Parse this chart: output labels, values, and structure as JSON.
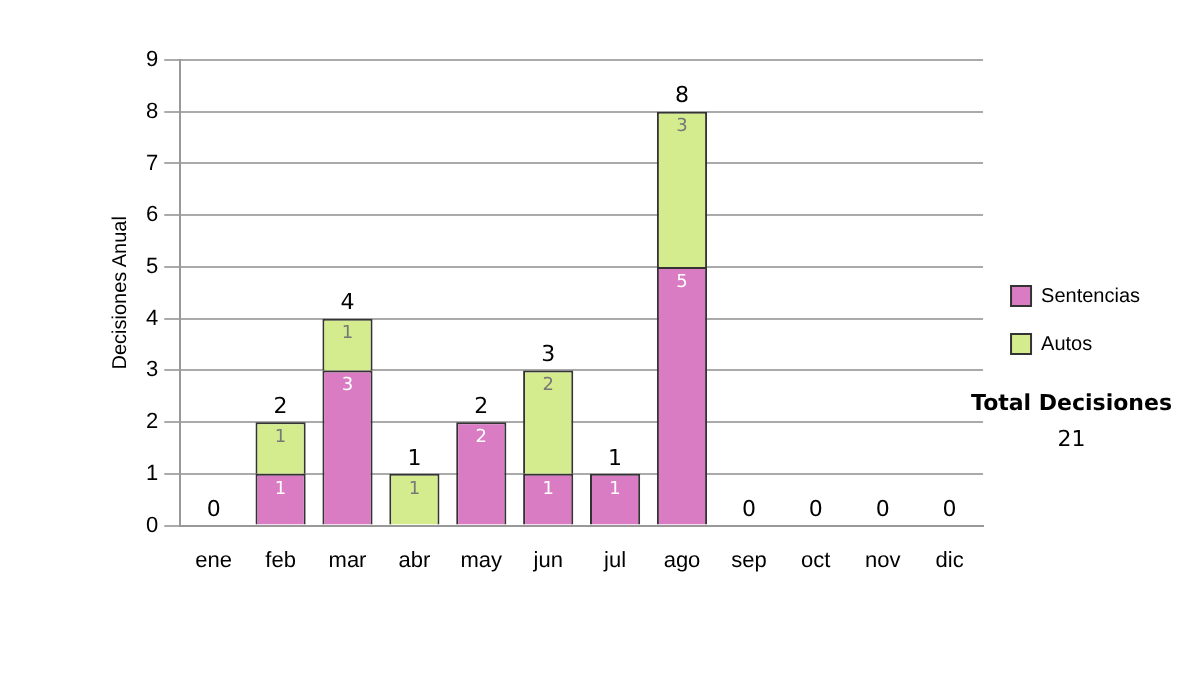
{
  "chart_data": {
    "type": "bar",
    "stacked": true,
    "ylabel": "Decisiones Anual",
    "categories": [
      "ene",
      "feb",
      "mar",
      "abr",
      "may",
      "jun",
      "jul",
      "ago",
      "sep",
      "oct",
      "nov",
      "dic"
    ],
    "series": [
      {
        "name": "Sentencias",
        "color": "#d97cc4",
        "values": [
          0,
          1,
          3,
          0,
          2,
          1,
          1,
          5,
          0,
          0,
          0,
          0
        ],
        "value_labels": [
          null,
          "1",
          "3",
          null,
          "2",
          "1",
          "1",
          "5",
          null,
          null,
          null,
          null
        ]
      },
      {
        "name": "Autos",
        "color": "#d4ec8e",
        "values": [
          0,
          1,
          1,
          1,
          0,
          2,
          0,
          3,
          0,
          0,
          0,
          0
        ],
        "value_labels": [
          null,
          "1",
          "1",
          "1",
          null,
          "2",
          null,
          "3",
          null,
          null,
          null,
          null
        ]
      }
    ],
    "totals": [
      "0",
      "2",
      "4",
      "1",
      "2",
      "3",
      "1",
      "8",
      "0",
      "0",
      "0",
      "0"
    ],
    "ylim": [
      0,
      9
    ],
    "yticks": [
      0,
      1,
      2,
      3,
      4,
      5,
      6,
      7,
      8,
      9
    ],
    "grid": "y",
    "legend": "right",
    "annotations": [
      "Total Decisiones",
      "21"
    ]
  }
}
